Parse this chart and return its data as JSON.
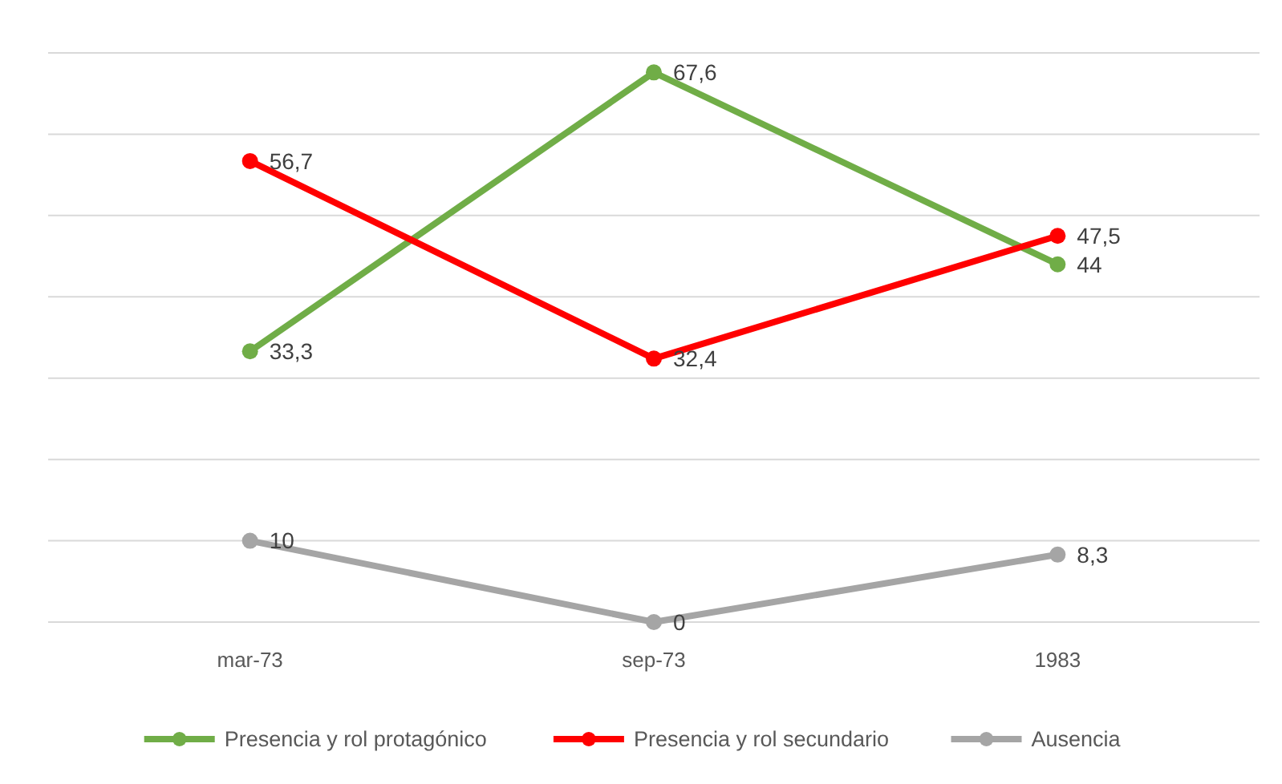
{
  "chart_data": {
    "type": "line",
    "categories": [
      "mar-73",
      "sep-73",
      "1983"
    ],
    "series": [
      {
        "name": "Presencia y rol protagónico",
        "color": "#70ad47",
        "values": [
          33.3,
          67.6,
          44
        ],
        "value_labels": [
          "33,3",
          "67,6",
          "44"
        ]
      },
      {
        "name": "Presencia y rol secundario",
        "color": "#ff0000",
        "values": [
          56.7,
          32.4,
          47.5
        ],
        "value_labels": [
          "56,7",
          "32,4",
          "47,5"
        ]
      },
      {
        "name": "Ausencia",
        "color": "#a5a5a5",
        "values": [
          10,
          0,
          8.3
        ],
        "value_labels": [
          "10",
          "0",
          "8,3"
        ]
      }
    ],
    "ylim": [
      0,
      70
    ],
    "yticks": [
      {
        "value": 0,
        "label": null
      },
      {
        "value": 10,
        "label": null
      },
      {
        "value": 20,
        "label": null
      },
      {
        "value": 30,
        "label": null
      },
      {
        "value": 40,
        "label": null
      },
      {
        "value": 50,
        "label": null
      },
      {
        "value": 60,
        "label": null
      },
      {
        "value": 70,
        "label": null
      }
    ],
    "tick_labels": "x",
    "grid": "y",
    "legend": "bottom",
    "marker": "circle",
    "line_style": "solid"
  }
}
